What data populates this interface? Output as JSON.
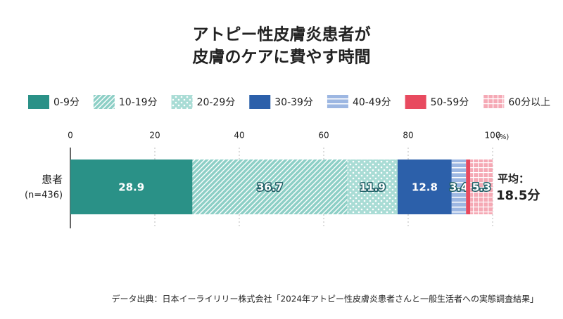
{
  "chart_data": {
    "type": "stacked-bar-horizontal",
    "title": [
      "アトピー性皮膚炎患者が",
      "皮膚のケアに費やす時間"
    ],
    "categories": [
      "患者"
    ],
    "category_notes": [
      "(n=436)"
    ],
    "series": [
      {
        "name": "0-9分",
        "color": "#2a9187",
        "pattern": "solid",
        "values": [
          28.9
        ]
      },
      {
        "name": "10-19分",
        "color": "#8dcfc6",
        "pattern": "hatch",
        "values": [
          36.7
        ]
      },
      {
        "name": "20-29分",
        "color": "#a9dcd5",
        "pattern": "dots",
        "values": [
          11.9
        ]
      },
      {
        "name": "30-39分",
        "color": "#2c60aa",
        "pattern": "solid",
        "values": [
          12.8
        ]
      },
      {
        "name": "40-49分",
        "color": "#9db7e2",
        "pattern": "stripes",
        "values": [
          3.4
        ]
      },
      {
        "name": "50-59分",
        "color": "#e84a5f",
        "pattern": "solid",
        "values": [
          1.0
        ],
        "show_value": false
      },
      {
        "name": "60分以上",
        "color": "#f5a9b5",
        "pattern": "grid",
        "values": [
          5.3
        ]
      }
    ],
    "xlim": [
      0,
      100
    ],
    "xticks": [
      0,
      20,
      40,
      60,
      80,
      100
    ],
    "x_unit": "(%)",
    "grid": true,
    "annotation": [
      "平均：",
      "18.5分"
    ],
    "source": "データ出典：日本イーライリリー株式会社「2024年アトピー性皮膚炎患者さんと一般生活者への実態調査結果」"
  }
}
